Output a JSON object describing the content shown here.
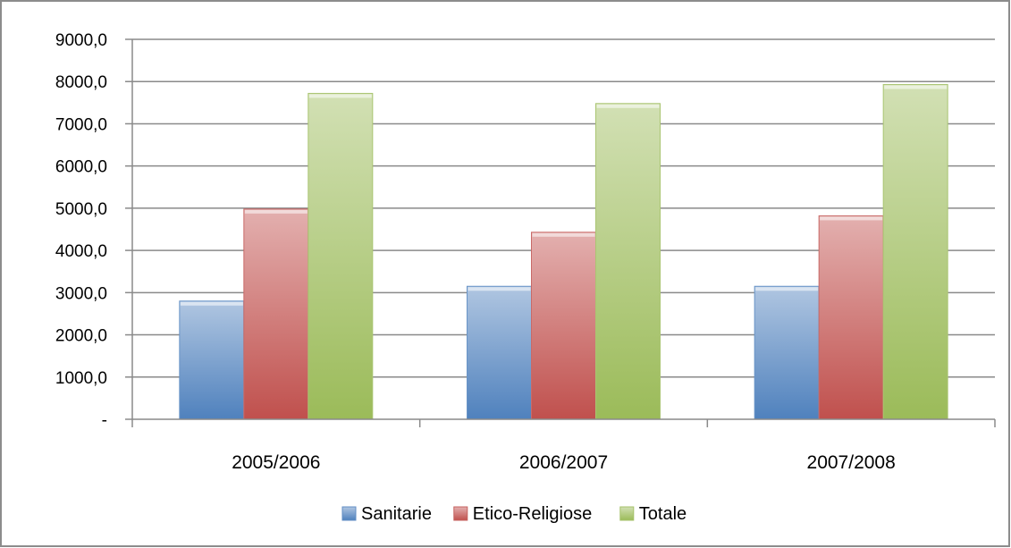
{
  "chart_data": {
    "type": "bar",
    "categories": [
      "2005/2006",
      "2006/2007",
      "2007/2008"
    ],
    "series": [
      {
        "name": "Sanitarie",
        "values": [
          2800,
          3150,
          3150
        ],
        "color": "#4f81bd"
      },
      {
        "name": "Etico-Religiose",
        "values": [
          4980,
          4430,
          4820
        ],
        "color": "#c0504d"
      },
      {
        "name": "Totale",
        "values": [
          7720,
          7480,
          7930
        ],
        "color": "#9bbb59"
      }
    ],
    "ylim": [
      0,
      9000
    ],
    "yticks": [
      0,
      1000,
      2000,
      3000,
      4000,
      5000,
      6000,
      7000,
      8000,
      9000
    ],
    "ytick_labels": [
      "-",
      "1000,0",
      "2000,0",
      "3000,0",
      "4000,0",
      "5000,0",
      "6000,0",
      "7000,0",
      "8000,0",
      "9000,0"
    ],
    "grid": true,
    "legend_position": "bottom",
    "title": "",
    "xlabel": "",
    "ylabel": ""
  }
}
